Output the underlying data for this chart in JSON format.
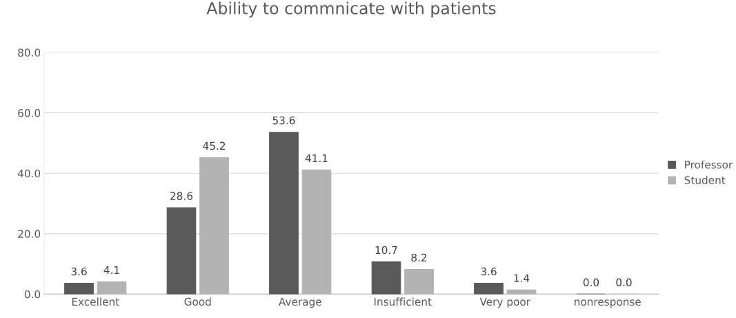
{
  "chart_data": {
    "type": "bar",
    "title": "Ability to commnicate with patients",
    "categories": [
      "Excellent",
      "Good",
      "Average",
      "Insufficient",
      "Very poor",
      "nonresponse"
    ],
    "series": [
      {
        "name": "Professor",
        "color": "#595959",
        "values": [
          3.6,
          28.6,
          53.6,
          10.7,
          3.6,
          0.0
        ],
        "value_labels": [
          "3.6",
          "28.6",
          "53.6",
          "10.7",
          "3.6",
          "0.0"
        ]
      },
      {
        "name": "Student",
        "color": "#b3b3b3",
        "values": [
          4.1,
          45.2,
          41.1,
          8.2,
          1.4,
          0.0
        ],
        "value_labels": [
          "4.1",
          "45.2",
          "41.1",
          "8.2",
          "1.4",
          "0.0"
        ]
      }
    ],
    "ylim": [
      0,
      80
    ],
    "yticks": [
      {
        "value": 0,
        "label": "0.0"
      },
      {
        "value": 20,
        "label": "20.0"
      },
      {
        "value": 40,
        "label": "40.0"
      },
      {
        "value": 60,
        "label": "60.0"
      },
      {
        "value": 80,
        "label": "80.0"
      }
    ],
    "grid": "y",
    "legend": "right"
  }
}
